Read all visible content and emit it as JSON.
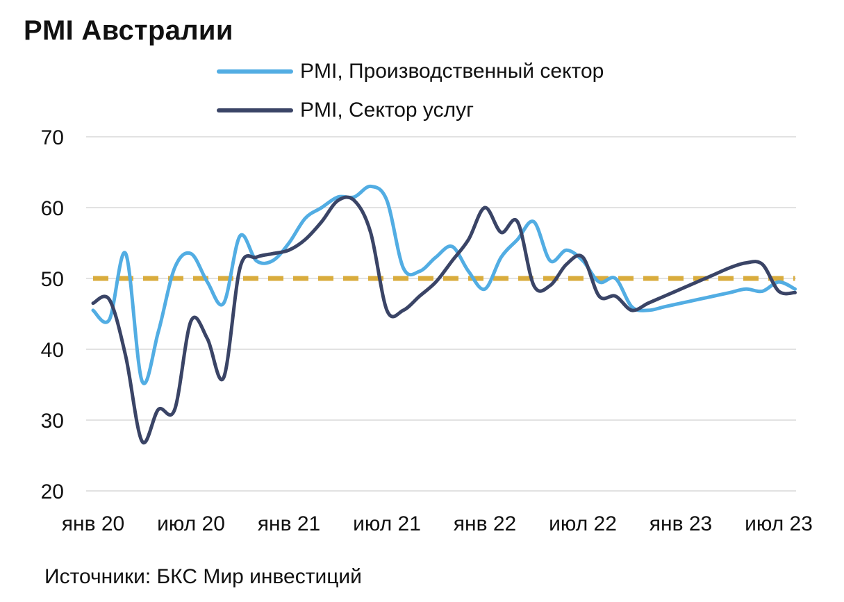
{
  "title": "PMI Австралии",
  "source": "Источники: БКС Мир инвестиций",
  "colors": {
    "manufacturing": "#52ade3",
    "services": "#3a4466",
    "threshold": "#d9ac3d",
    "grid": "#d9d9d9"
  },
  "chart_data": {
    "type": "line",
    "title": "PMI Австралии",
    "xlabel": "",
    "ylabel": "",
    "ylim": [
      20,
      70
    ],
    "yticks": [
      20,
      30,
      40,
      50,
      60,
      70
    ],
    "grid": true,
    "legend_position": "top",
    "x": [
      "2020-01",
      "2020-02",
      "2020-03",
      "2020-04",
      "2020-05",
      "2020-06",
      "2020-07",
      "2020-08",
      "2020-09",
      "2020-10",
      "2020-11",
      "2020-12",
      "2021-01",
      "2021-02",
      "2021-03",
      "2021-04",
      "2021-05",
      "2021-06",
      "2021-07",
      "2021-08",
      "2021-09",
      "2021-10",
      "2021-11",
      "2021-12",
      "2022-01",
      "2022-02",
      "2022-03",
      "2022-04",
      "2022-05",
      "2022-06",
      "2022-07",
      "2022-08",
      "2022-09",
      "2022-10",
      "2022-11",
      "2022-12",
      "2023-01",
      "2023-02",
      "2023-03",
      "2023-04",
      "2023-05",
      "2023-06",
      "2023-07",
      "2023-08"
    ],
    "xtick_labels": [
      {
        "x": "2020-01",
        "label": "янв 20"
      },
      {
        "x": "2020-07",
        "label": "июл 20"
      },
      {
        "x": "2021-01",
        "label": "янв 21"
      },
      {
        "x": "2021-07",
        "label": "июл 21"
      },
      {
        "x": "2022-01",
        "label": "янв 22"
      },
      {
        "x": "2022-07",
        "label": "июл 22"
      },
      {
        "x": "2023-01",
        "label": "янв 23"
      },
      {
        "x": "2023-07",
        "label": "июл 23"
      }
    ],
    "series": [
      {
        "name": "PMI, Производственный сектор",
        "key": "manufacturing",
        "values": [
          45.5,
          44.2,
          53.5,
          35.5,
          42.5,
          51.5,
          53.5,
          49.5,
          46.5,
          56.0,
          52.5,
          52.5,
          55.0,
          58.5,
          60.0,
          61.5,
          61.5,
          63.0,
          61.0,
          51.5,
          51.0,
          53.0,
          54.5,
          51.0,
          48.5,
          53.0,
          55.5,
          58.0,
          52.5,
          54.0,
          52.5,
          49.5,
          50.0,
          46.0,
          45.5,
          46.0,
          46.5,
          47.0,
          47.5,
          48.0,
          48.5,
          48.2,
          49.5,
          48.5
        ]
      },
      {
        "name": "PMI, Сектор услуг",
        "key": "services",
        "values": [
          46.5,
          47.0,
          39.0,
          27.0,
          31.5,
          31.5,
          44.0,
          41.5,
          36.0,
          51.5,
          53.0,
          53.5,
          54.0,
          55.5,
          58.0,
          61.0,
          61.0,
          56.5,
          45.5,
          45.5,
          47.5,
          49.5,
          52.5,
          55.5,
          60.0,
          56.5,
          58.0,
          49.0,
          49.0,
          52.0,
          53.0,
          47.5,
          47.5,
          45.5,
          46.5,
          47.5,
          48.5,
          49.5,
          50.5,
          51.5,
          52.2,
          52.0,
          48.2,
          48.0
        ]
      },
      {
        "name": "",
        "key": "threshold",
        "values": [
          50,
          50,
          50,
          50,
          50,
          50,
          50,
          50,
          50,
          50,
          50,
          50,
          50,
          50,
          50,
          50,
          50,
          50,
          50,
          50,
          50,
          50,
          50,
          50,
          50,
          50,
          50,
          50,
          50,
          50,
          50,
          50,
          50,
          50,
          50,
          50,
          50,
          50,
          50,
          50,
          50,
          50,
          50,
          50
        ]
      }
    ]
  },
  "legend": [
    {
      "label": "PMI, Производственный сектор"
    },
    {
      "label": "PMI, Сектор услуг"
    }
  ]
}
